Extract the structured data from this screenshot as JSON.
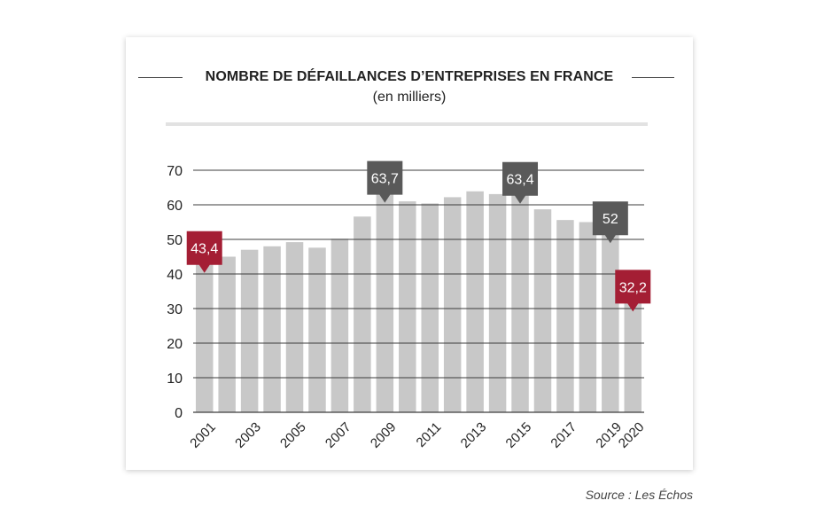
{
  "title": "NOMBRE DE DÉFAILLANCES D’ENTREPRISES EN FRANCE",
  "subtitle": "(en milliers)",
  "source": "Source : Les Échos",
  "colors": {
    "bar": "#c8c8c8",
    "highlight_red": "#a41e34",
    "highlight_dark": "#595959",
    "gridline": "#3c3c3c"
  },
  "chart_data": {
    "type": "bar",
    "title": "NOMBRE DE DÉFAILLANCES D’ENTREPRISES EN FRANCE",
    "subtitle": "(en milliers)",
    "xlabel": "",
    "ylabel": "",
    "categories": [
      "2001",
      "2002",
      "2003",
      "2004",
      "2005",
      "2006",
      "2007",
      "2008",
      "2009",
      "2010",
      "2011",
      "2012",
      "2013",
      "2014",
      "2015",
      "2016",
      "2017",
      "2018",
      "2019",
      "2020"
    ],
    "values": [
      43.4,
      45.0,
      47.0,
      48.0,
      49.2,
      47.6,
      50.2,
      56.6,
      63.7,
      61.0,
      60.4,
      62.2,
      63.9,
      63.1,
      63.4,
      58.7,
      55.6,
      55.0,
      52.0,
      32.2
    ],
    "ylim": [
      0,
      70
    ],
    "yticks": [
      0,
      10,
      20,
      30,
      40,
      50,
      60,
      70
    ],
    "xtick_labels": [
      "2001",
      "2003",
      "2005",
      "2007",
      "2009",
      "2011",
      "2013",
      "2015",
      "2017",
      "2019",
      "2020"
    ],
    "grid": true,
    "callouts": [
      {
        "category": "2001",
        "label": "43,4",
        "color": "red"
      },
      {
        "category": "2009",
        "label": "63,7",
        "color": "dark"
      },
      {
        "category": "2015",
        "label": "63,4",
        "color": "dark"
      },
      {
        "category": "2019",
        "label": "52",
        "color": "dark"
      },
      {
        "category": "2020",
        "label": "32,2",
        "color": "red"
      }
    ]
  }
}
